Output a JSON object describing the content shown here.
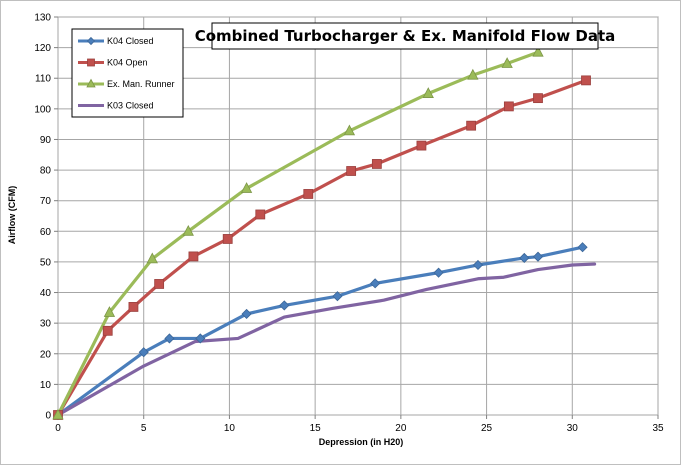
{
  "chart_data": {
    "type": "line",
    "title": "Combined Turbocharger & Ex. Manifold Flow Data",
    "xlabel": "Depression (in H20)",
    "ylabel": "Airflow (CFM)",
    "xlim": [
      0,
      35
    ],
    "ylim": [
      0,
      130
    ],
    "x_ticks": [
      "0",
      "5",
      "10",
      "15",
      "20",
      "25",
      "30",
      "35"
    ],
    "y_ticks": [
      "0",
      "10",
      "20",
      "30",
      "40",
      "50",
      "60",
      "70",
      "80",
      "90",
      "100",
      "110",
      "120",
      "130"
    ],
    "grid": true,
    "legend_position": "top-left",
    "series": [
      {
        "name": "K04 Closed",
        "color": "#4a7ebb",
        "marker": "diamond",
        "points": [
          [
            0,
            0
          ],
          [
            5,
            20.5
          ],
          [
            6.5,
            25
          ],
          [
            8.3,
            25
          ],
          [
            11,
            33
          ],
          [
            13.2,
            35.8
          ],
          [
            16.3,
            38.8
          ],
          [
            18.5,
            43
          ],
          [
            22.2,
            46.5
          ],
          [
            24.5,
            49
          ],
          [
            27.2,
            51.3
          ],
          [
            28,
            51.7
          ],
          [
            30.6,
            54.8
          ]
        ]
      },
      {
        "name": "K04 Open",
        "color": "#c0504d",
        "marker": "square",
        "points": [
          [
            0,
            0
          ],
          [
            2.9,
            27.5
          ],
          [
            4.4,
            35.3
          ],
          [
            5.9,
            42.8
          ],
          [
            7.9,
            51.8
          ],
          [
            9.9,
            57.5
          ],
          [
            11.8,
            65.5
          ],
          [
            14.6,
            72.2
          ],
          [
            17.1,
            79.7
          ],
          [
            18.6,
            82
          ],
          [
            21.2,
            88
          ],
          [
            24.1,
            94.5
          ],
          [
            26.3,
            100.8
          ],
          [
            28,
            103.5
          ],
          [
            30.8,
            109.3
          ]
        ]
      },
      {
        "name": "Ex. Man. Runner",
        "color": "#9bbb59",
        "marker": "triangle",
        "points": [
          [
            0,
            0
          ],
          [
            3,
            33.5
          ],
          [
            5.5,
            51
          ],
          [
            7.6,
            60
          ],
          [
            11,
            74
          ],
          [
            17,
            92.8
          ],
          [
            21.6,
            105
          ],
          [
            24.2,
            111
          ],
          [
            26.2,
            114.8
          ],
          [
            28,
            118.5
          ]
        ]
      },
      {
        "name": "K03 Closed",
        "color": "#8064a2",
        "marker": "none",
        "points": [
          [
            0,
            0
          ],
          [
            5,
            16
          ],
          [
            8,
            24
          ],
          [
            10.5,
            25
          ],
          [
            13.2,
            32
          ],
          [
            16,
            34.8
          ],
          [
            19,
            37.5
          ],
          [
            21.5,
            41
          ],
          [
            24.5,
            44.5
          ],
          [
            26,
            45
          ],
          [
            28,
            47.5
          ],
          [
            30,
            49
          ],
          [
            31.3,
            49.3
          ]
        ]
      }
    ]
  }
}
